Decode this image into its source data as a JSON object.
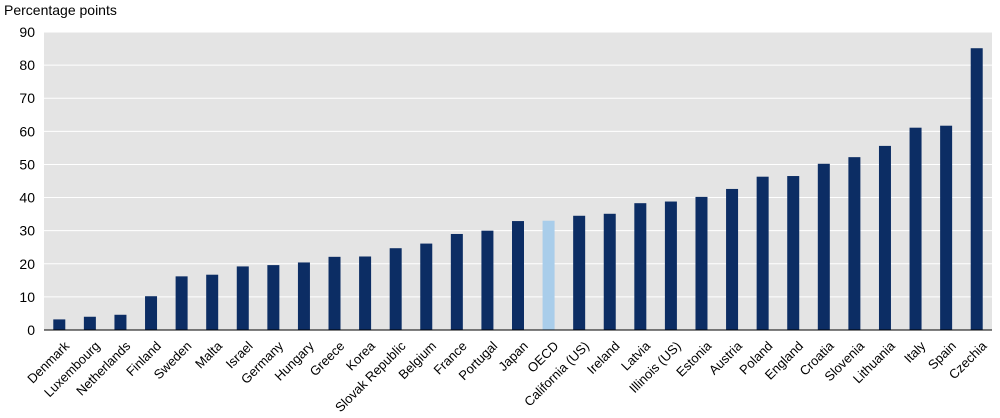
{
  "chart_data": {
    "type": "bar",
    "title": "",
    "xlabel": "",
    "ylabel": "Percentage points",
    "ylim": [
      0,
      90
    ],
    "yticks": [
      0,
      10,
      20,
      30,
      40,
      50,
      60,
      70,
      80,
      90
    ],
    "grid": true,
    "categories": [
      "Denmark",
      "Luxembourg",
      "Netherlands",
      "Finland",
      "Sweden",
      "Malta",
      "Israel",
      "Germany",
      "Hungary",
      "Greece",
      "Korea",
      "Slovak Republic",
      "Belgium",
      "France",
      "Portugal",
      "Japan",
      "OECD",
      "California (US)",
      "Ireland",
      "Latvia",
      "Illinois (US)",
      "Estonia",
      "Austria",
      "Poland",
      "England",
      "Croatia",
      "Slovenia",
      "Lithuania",
      "Italy",
      "Spain",
      "Czechia"
    ],
    "values": [
      3.2,
      4.0,
      4.6,
      10.2,
      16.2,
      16.7,
      19.2,
      19.6,
      20.4,
      22.1,
      22.2,
      24.7,
      26.1,
      29.0,
      30.0,
      32.9,
      33.0,
      34.5,
      35.1,
      38.3,
      38.8,
      40.2,
      42.6,
      46.3,
      46.5,
      50.2,
      52.2,
      55.6,
      61.1,
      61.7,
      85.1
    ],
    "highlight": "OECD",
    "colors": {
      "bar": "#0c2d64",
      "highlight_bar": "#a9cdea",
      "plot_background": "#e4e4e4",
      "gridline": "#ffffff"
    }
  }
}
